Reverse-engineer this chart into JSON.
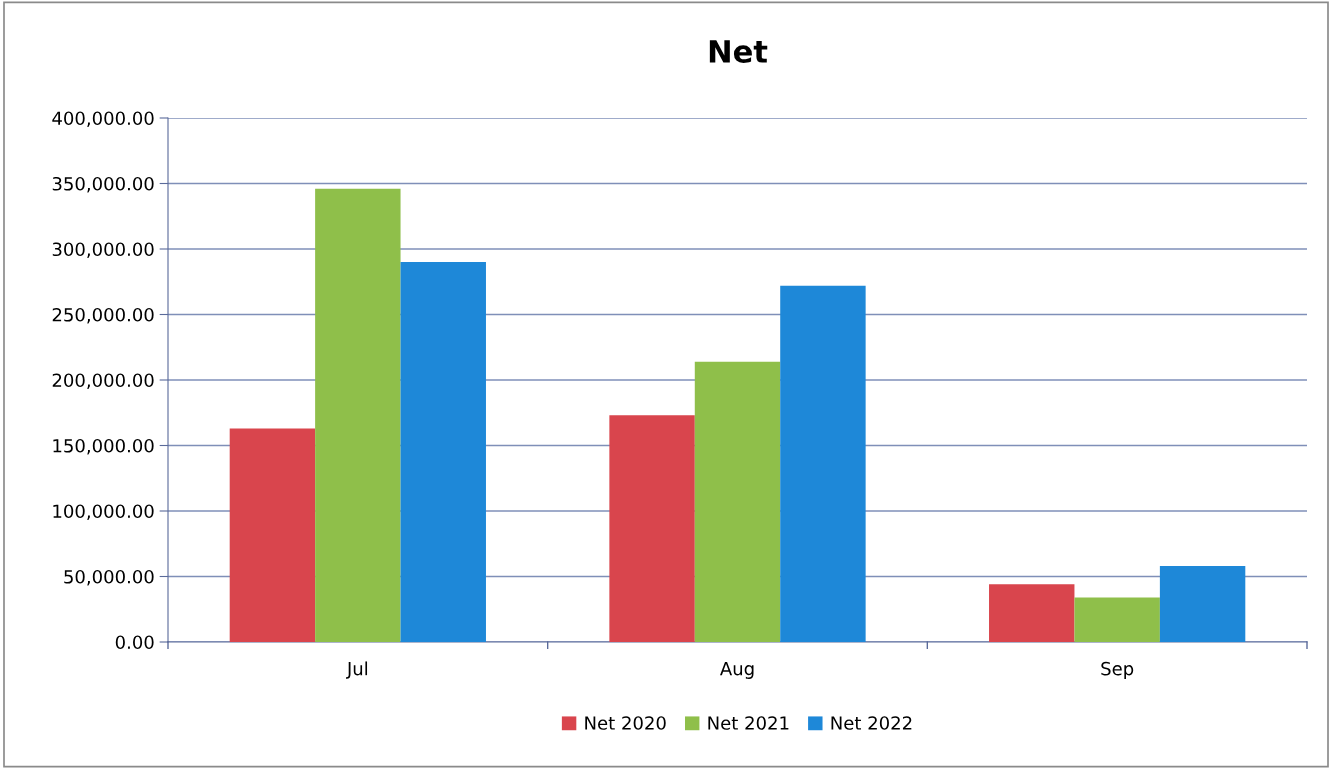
{
  "chart_data": {
    "type": "bar",
    "title": "Net",
    "categories": [
      "Jul",
      "Aug",
      "Sep"
    ],
    "series": [
      {
        "name": "Net 2020",
        "color": "#d9454d",
        "values": [
          163000,
          173000,
          44000
        ]
      },
      {
        "name": "Net 2021",
        "color": "#8fbf4a",
        "values": [
          346000,
          214000,
          34000
        ]
      },
      {
        "name": "Net 2022",
        "color": "#1e88d8",
        "values": [
          290000,
          272000,
          58000
        ]
      }
    ],
    "ylim": [
      0,
      400000
    ],
    "yticks": [
      {
        "value": 0,
        "label": "0.00"
      },
      {
        "value": 50000,
        "label": "50,000.00"
      },
      {
        "value": 100000,
        "label": "100,000.00"
      },
      {
        "value": 150000,
        "label": "150,000.00"
      },
      {
        "value": 200000,
        "label": "200,000.00"
      },
      {
        "value": 250000,
        "label": "250,000.00"
      },
      {
        "value": 300000,
        "label": "300,000.00"
      },
      {
        "value": 350000,
        "label": "350,000.00"
      },
      {
        "value": 400000,
        "label": "400,000.00"
      }
    ],
    "grid": "y",
    "legend": "bottom"
  }
}
